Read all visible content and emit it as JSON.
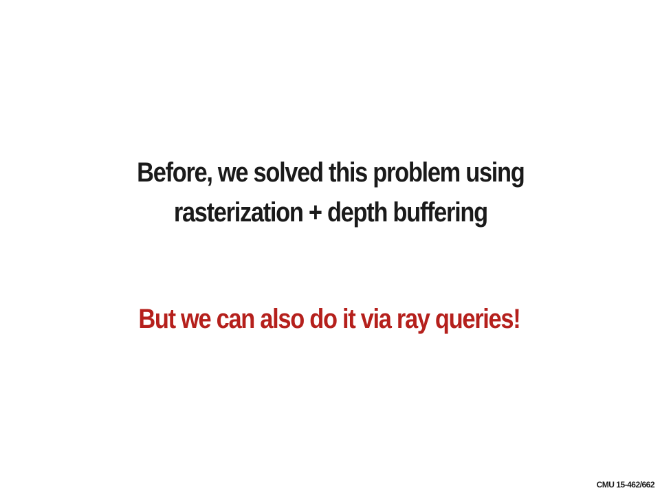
{
  "slide": {
    "statement_lines": [
      "Before, we solved this problem using",
      "rasterization + depth buffering"
    ],
    "highlight": "But we can also do it via ray queries!",
    "footer": "CMU 15-462/662"
  },
  "colors": {
    "text": "#1a1a1a",
    "accent": "#b5201c",
    "background": "#ffffff"
  }
}
